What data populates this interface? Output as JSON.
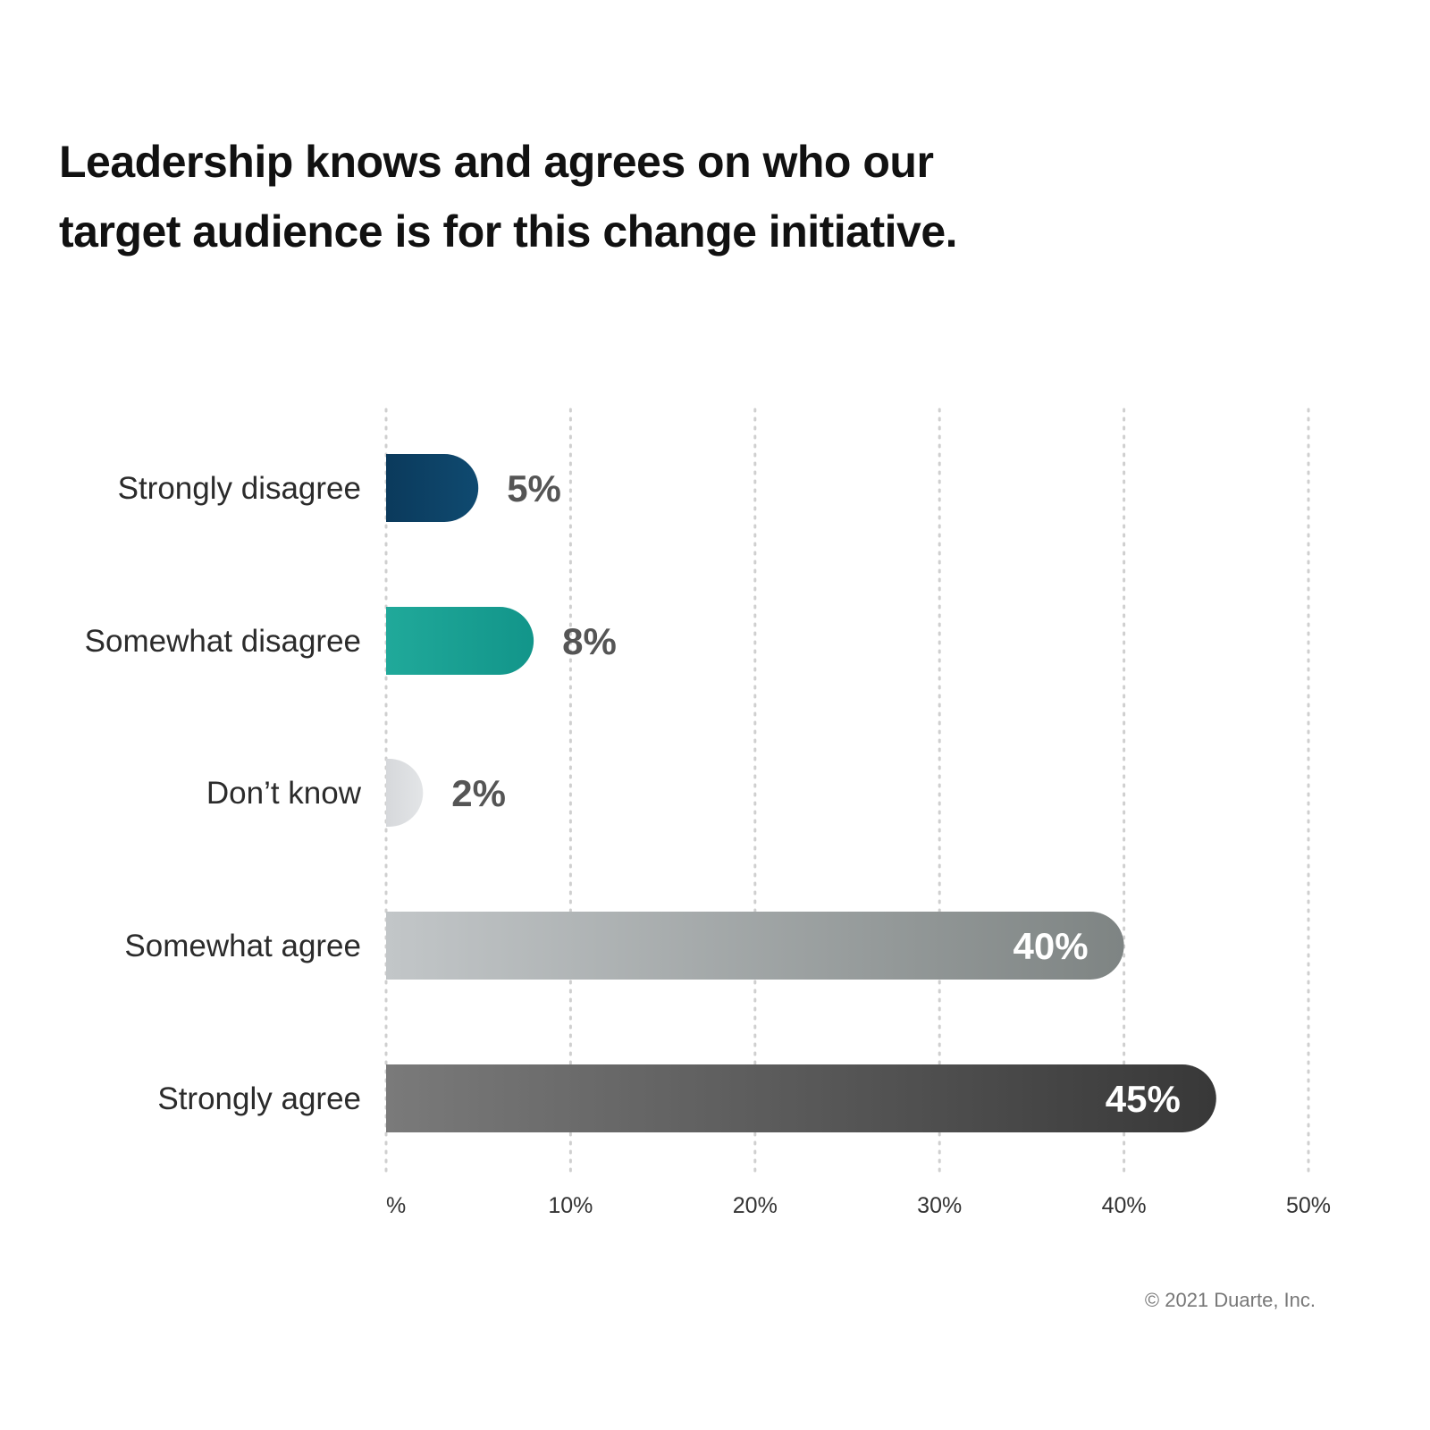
{
  "chart_data": {
    "type": "bar",
    "orientation": "horizontal",
    "title_lines": [
      "Leadership knows and agrees on who our",
      "target audience is for this change initiative."
    ],
    "categories": [
      "Strongly disagree",
      "Somewhat disagree",
      "Don’t know",
      "Somewhat agree",
      "Strongly agree"
    ],
    "values": [
      5,
      8,
      2,
      40,
      45
    ],
    "value_labels": [
      "5%",
      "8%",
      "2%",
      "40%",
      "45%"
    ],
    "xlim": [
      0,
      50
    ],
    "x_ticks": [
      0,
      10,
      20,
      30,
      40,
      50
    ],
    "x_tick_labels": [
      "%",
      "10%",
      "20%",
      "30%",
      "40%",
      "50%"
    ],
    "grid": "vertical dotted",
    "legend": "none",
    "colors": [
      [
        "#0b3a5c",
        "#0f4a70"
      ],
      [
        "#20a99a",
        "#12958a"
      ],
      [
        "#d6d8db",
        "#e3e5e7"
      ],
      [
        "#c2c6c8",
        "#7e8483"
      ],
      [
        "#7a7a7a",
        "#383838"
      ]
    ]
  },
  "footer": {
    "copyright": "© 2021 Duarte, Inc."
  }
}
